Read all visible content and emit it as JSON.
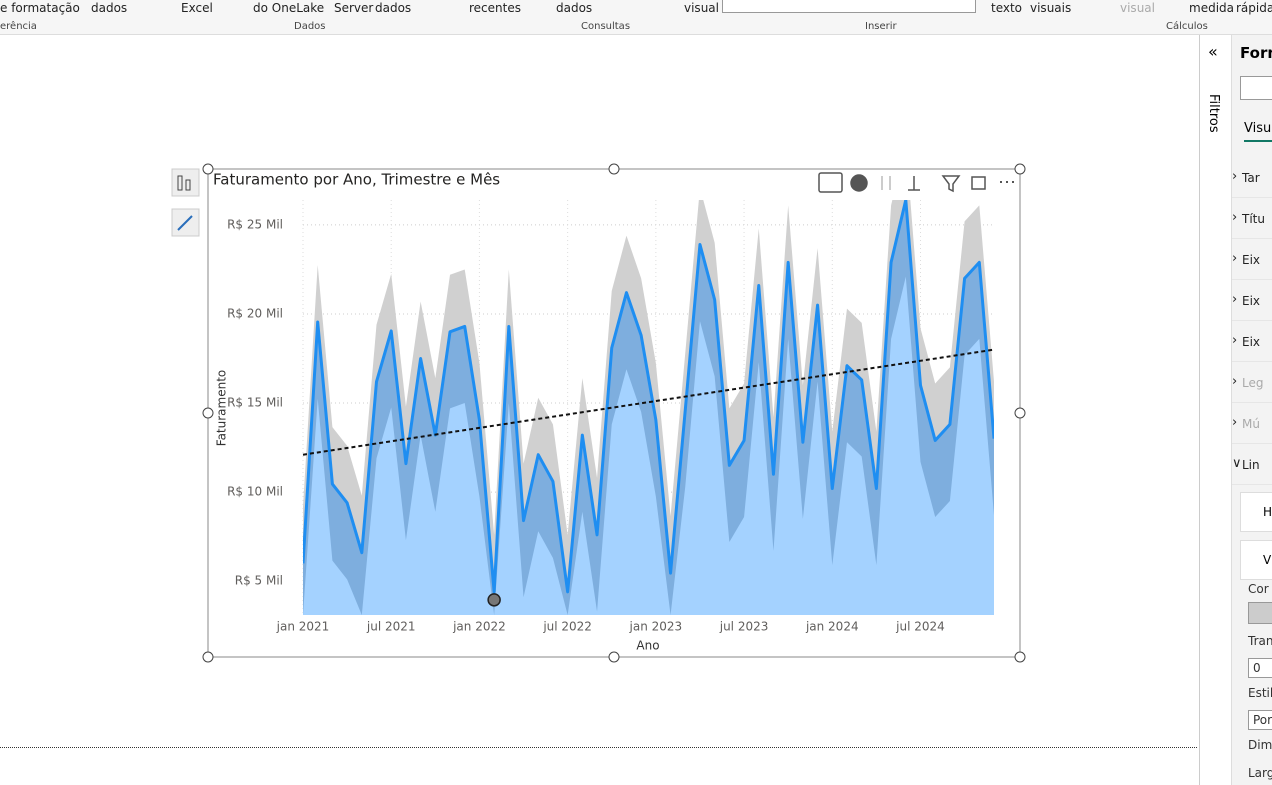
{
  "ribbon": {
    "top": [
      "e formatação",
      "dados",
      "Excel",
      "do OneLake",
      "Server",
      "dados",
      "recentes",
      "dados",
      "visual",
      "texto",
      "visuais",
      "visual",
      "medida",
      "rápida"
    ],
    "groups": [
      "erência",
      "Dados",
      "Consultas",
      "Inserir",
      "Cálculos"
    ]
  },
  "filters": "Filtros",
  "format_pane": {
    "title": "Form",
    "tab": "Visua",
    "sections": [
      "Tar",
      "Títu",
      "Eix",
      "Eix",
      "Eix",
      "Leg",
      "Mú",
      "Lin"
    ],
    "subsections": [
      "H",
      "V"
    ],
    "fields": [
      "Cor",
      "Trans",
      "0",
      "Estilo",
      "Por",
      "Dime",
      "Larg"
    ]
  },
  "chart_data": {
    "type": "line",
    "title": "Faturamento por Ano, Trimestre e Mês",
    "x_label": "Ano",
    "y_label": "Faturamento",
    "categories": [
      "jan 2021",
      null,
      null,
      null,
      null,
      null,
      "jul 2021",
      null,
      null,
      null,
      null,
      null,
      "jan 2022",
      null,
      null,
      null,
      null,
      null,
      "jul 2022",
      null,
      null,
      null,
      null,
      null,
      "jan 2023",
      null,
      null,
      null,
      null,
      null,
      "jul 2023",
      null,
      null,
      null,
      null,
      null,
      "jan 2024",
      null,
      null,
      null,
      null,
      null,
      "jul 2024",
      null,
      null,
      null,
      null,
      null
    ],
    "series": [
      {
        "color": "#1f8ef1",
        "values": [
          6000,
          19550,
          10450,
          9400,
          6600,
          16200,
          19050,
          11600,
          17500,
          13200,
          19000,
          19300,
          14050,
          4400,
          19300,
          8400,
          12100,
          10600,
          4400,
          13200,
          7600,
          18100,
          21200,
          18800,
          14050,
          5450,
          14600,
          23900,
          20800,
          11500,
          12900,
          21600,
          11000,
          22900,
          12800,
          20500,
          10200,
          17100,
          16300,
          10200,
          22900,
          26400,
          16000,
          12900,
          13800,
          22000,
          22900,
          13000
        ]
      }
    ],
    "band_upper": [
      9200,
      22750,
      13650,
      12600,
      9800,
      19400,
      22250,
      14800,
      20700,
      16400,
      22200,
      22500,
      17250,
      7600,
      22500,
      11600,
      15300,
      13800,
      7600,
      16400,
      10800,
      21300,
      24400,
      22000,
      17250,
      8650,
      17800,
      27100,
      24000,
      14700,
      16100,
      24800,
      14200,
      26100,
      16000,
      23700,
      13400,
      20300,
      19500,
      13400,
      26100,
      29600,
      19200,
      16100,
      17000,
      25200,
      26100,
      16200
    ],
    "band_lower": [
      3100,
      15250,
      6150,
      5100,
      3100,
      11900,
      14750,
      7300,
      13200,
      8900,
      14700,
      15000,
      9750,
      3100,
      15000,
      4100,
      7800,
      6300,
      3100,
      8900,
      3300,
      13800,
      16900,
      14500,
      9750,
      3100,
      10300,
      19600,
      16500,
      7200,
      8600,
      17300,
      6700,
      18600,
      8500,
      16200,
      5900,
      12800,
      12000,
      5900,
      18600,
      22100,
      11700,
      8600,
      9500,
      17700,
      18600,
      8700
    ],
    "trend": [
      12100,
      18000
    ],
    "trend_color": "#111111",
    "upper_color": "#d0d0d0",
    "mid_color": "#7eaede",
    "lower_color": "#a4d2ff",
    "ylim": [
      3100,
      26400
    ],
    "yticks": [
      {
        "value": 5000,
        "label": "R$ 5 Mil"
      },
      {
        "value": 10000,
        "label": "R$ 10 Mil"
      },
      {
        "value": 15000,
        "label": "R$ 15 Mil"
      },
      {
        "value": 20000,
        "label": "R$ 20 Mil"
      },
      {
        "value": 25000,
        "label": "R$ 25 Mil"
      }
    ],
    "grid": true,
    "min_marker_index": 13
  }
}
